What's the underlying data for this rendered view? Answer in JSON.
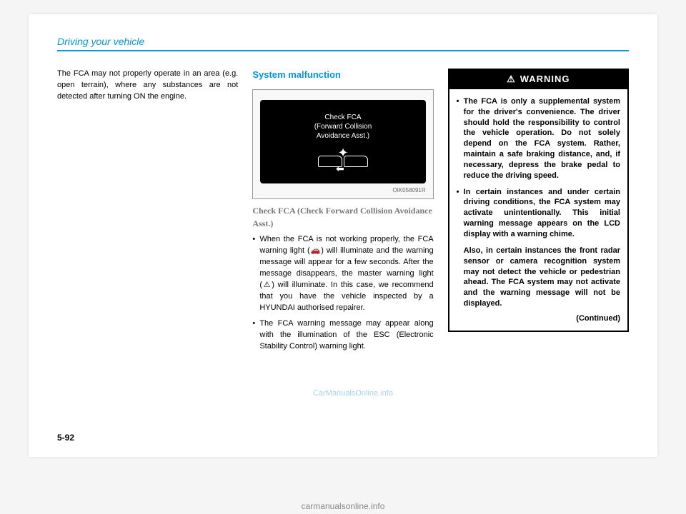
{
  "header": {
    "title": "Driving your vehicle"
  },
  "col1": {
    "text": "The FCA may not properly operate in an area (e.g. open terrain), where any substances are not detected after turning ON the engine."
  },
  "col2": {
    "sectionTitle": "System malfunction",
    "display": {
      "line1": "Check FCA",
      "line2": "(Forward Collision",
      "line3": "Avoidance Asst.)"
    },
    "imgCode": "OIK058091R",
    "subHeading": "Check FCA (Check Forward Collision Avoidance Asst.)",
    "bullets": [
      "When the FCA is not working properly, the FCA warning light (🚗) will illuminate and the warning message will appear for a few seconds. After the message disappears, the master warning light (⚠) will illuminate. In this case, we recommend that you have the vehicle inspected by a HYUNDAI authorised repairer.",
      "The FCA warning message may appear along with the illumination of the ESC (Electronic Stability Control) warning light."
    ]
  },
  "col3": {
    "warningLabel": "WARNING",
    "bullets": [
      "The FCA is only a supplemental system for the driver's convenience. The driver should hold the responsibility to control the vehicle operation. Do not solely depend on the FCA system. Rather, maintain a safe braking distance, and, if necessary, depress the brake pedal to reduce the driving speed.",
      "In certain instances and under certain driving conditions, the FCA system may activate unintentionally. This initial warning message appears on the LCD display with a warning chime."
    ],
    "also": "Also, in certain instances the front radar sensor or camera recognition system may not detect the vehicle or pedestrian ahead. The FCA system may not activate and the warning message will not be displayed.",
    "continued": "(Continued)"
  },
  "pageNum": "5-92",
  "watermark": "carmanualsonline.info",
  "watermark2": "CarManualsOnline.info"
}
